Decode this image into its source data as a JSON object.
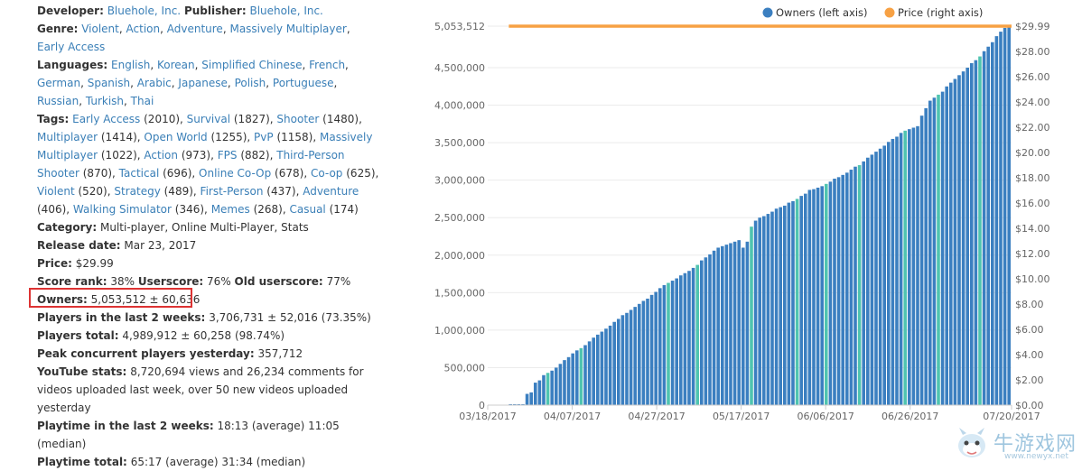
{
  "info": {
    "developer_label": "Developer:",
    "developer": "Bluehole, Inc.",
    "publisher_label": "Publisher:",
    "publisher": "Bluehole, Inc.",
    "genre_label": "Genre:",
    "genres": [
      "Violent",
      "Action",
      "Adventure",
      "Massively Multiplayer",
      "Early Access"
    ],
    "languages_label": "Languages:",
    "languages": [
      "English",
      "Korean",
      "Simplified Chinese",
      "French",
      "German",
      "Spanish",
      "Arabic",
      "Japanese",
      "Polish",
      "Portuguese",
      "Russian",
      "Turkish",
      "Thai"
    ],
    "tags_label": "Tags:",
    "tags": [
      {
        "name": "Early Access",
        "count": "(2010)"
      },
      {
        "name": "Survival",
        "count": "(1827)"
      },
      {
        "name": "Shooter",
        "count": "(1480)"
      },
      {
        "name": "Multiplayer",
        "count": "(1414)"
      },
      {
        "name": "Open World",
        "count": "(1255)"
      },
      {
        "name": "PvP",
        "count": "(1158)"
      },
      {
        "name": "Massively Multiplayer",
        "count": "(1022)"
      },
      {
        "name": "Action",
        "count": "(973)"
      },
      {
        "name": "FPS",
        "count": "(882)"
      },
      {
        "name": "Third-Person Shooter",
        "count": "(870)"
      },
      {
        "name": "Tactical",
        "count": "(696)"
      },
      {
        "name": "Online Co-Op",
        "count": "(678)"
      },
      {
        "name": "Co-op",
        "count": "(625)"
      },
      {
        "name": "Violent",
        "count": "(520)"
      },
      {
        "name": "Strategy",
        "count": "(489)"
      },
      {
        "name": "First-Person",
        "count": "(437)"
      },
      {
        "name": "Adventure",
        "count": "(406)"
      },
      {
        "name": "Walking Simulator",
        "count": "(346)"
      },
      {
        "name": "Memes",
        "count": "(268)"
      },
      {
        "name": "Casual",
        "count": "(174)"
      }
    ],
    "category_label": "Category:",
    "category": "Multi-player, Online Multi-Player, Stats",
    "release_label": "Release date:",
    "release": "Mar 23, 2017",
    "price_label": "Price:",
    "price": "$29.99",
    "score_rank_label": "Score rank:",
    "score_rank": "38%",
    "userscore_label": "Userscore:",
    "userscore": "76%",
    "old_userscore_label": "Old userscore:",
    "old_userscore": "77%",
    "owners_label": "Owners:",
    "owners": "5,053,512 ± 60,636",
    "players2w_label": "Players in the last 2 weeks:",
    "players2w": "3,706,731 ± 52,016 (73.35%)",
    "players_total_label": "Players total:",
    "players_total": "4,989,912 ± 60,258 (98.74%)",
    "peak_label": "Peak concurrent players yesterday:",
    "peak": "357,712",
    "youtube_label": "YouTube stats:",
    "youtube": "8,720,694 views and 26,234 comments for videos uploaded last week, over 50 new videos uploaded yesterday",
    "playtime2w_label": "Playtime in the last 2 weeks:",
    "playtime2w": "18:13 (average) 11:05 (median)",
    "playtime_total_label": "Playtime total:",
    "playtime_total": "65:17 (average) 31:34 (median)"
  },
  "chart_data": {
    "type": "bar",
    "series": [
      {
        "name": "Owners (left axis)",
        "type": "bar",
        "color": "#3b7fc0",
        "highlight_color": "#4fc4b0"
      },
      {
        "name": "Price (right axis)",
        "type": "line",
        "color": "#f7a144",
        "value": 29.99
      }
    ],
    "x_tick_labels": [
      "03/18/2017",
      "04/07/2017",
      "04/27/2017",
      "05/17/2017",
      "06/06/2017",
      "06/26/2017",
      "07/20/2017"
    ],
    "x_tick_days": [
      0,
      20,
      40,
      60,
      80,
      100,
      124
    ],
    "x_range_days": [
      0,
      124
    ],
    "bar_start_day": 5,
    "bar_days": 119,
    "y_left_ticks": [
      0,
      500000,
      1000000,
      1500000,
      2000000,
      2500000,
      3000000,
      3500000,
      4000000,
      4500000,
      5053512
    ],
    "y_left_tick_labels": [
      "0",
      "500,000",
      "1,000,000",
      "1,500,000",
      "2,000,000",
      "2,500,000",
      "3,000,000",
      "3,500,000",
      "4,000,000",
      "4,500,000",
      "5,053,512"
    ],
    "y_left_range": [
      0,
      5053512
    ],
    "y_right_ticks": [
      0,
      2,
      4,
      6,
      8,
      10,
      12,
      14,
      16,
      18,
      20,
      22,
      24,
      26,
      28,
      29.99
    ],
    "y_right_tick_labels": [
      "$0.00",
      "$2.00",
      "$4.00",
      "$6.00",
      "$8.00",
      "$10.00",
      "$12.00",
      "$14.00",
      "$16.00",
      "$18.00",
      "$20.00",
      "$22.00",
      "$24.00",
      "$26.00",
      "$28.00",
      "$29.99"
    ],
    "y_right_range": [
      0,
      29.99
    ],
    "owners_values": [
      0,
      0,
      0,
      0,
      150000,
      170000,
      300000,
      330000,
      400000,
      430000,
      460000,
      500000,
      550000,
      600000,
      640000,
      690000,
      730000,
      760000,
      800000,
      850000,
      900000,
      940000,
      980000,
      1020000,
      1060000,
      1110000,
      1150000,
      1200000,
      1230000,
      1270000,
      1310000,
      1350000,
      1390000,
      1420000,
      1470000,
      1510000,
      1560000,
      1600000,
      1630000,
      1660000,
      1690000,
      1730000,
      1760000,
      1790000,
      1830000,
      1870000,
      1930000,
      1970000,
      2010000,
      2060000,
      2100000,
      2120000,
      2140000,
      2160000,
      2180000,
      2200000,
      2100000,
      2180000,
      2380000,
      2460000,
      2500000,
      2520000,
      2550000,
      2580000,
      2620000,
      2640000,
      2660000,
      2700000,
      2720000,
      2750000,
      2790000,
      2820000,
      2870000,
      2880000,
      2900000,
      2920000,
      2950000,
      2980000,
      3020000,
      3040000,
      3070000,
      3100000,
      3140000,
      3180000,
      3200000,
      3250000,
      3300000,
      3340000,
      3380000,
      3420000,
      3460000,
      3510000,
      3550000,
      3580000,
      3630000,
      3660000,
      3680000,
      3700000,
      3720000,
      3860000,
      3960000,
      4060000,
      4100000,
      4140000,
      4180000,
      4250000,
      4300000,
      4350000,
      4400000,
      4450000,
      4500000,
      4560000,
      4600000,
      4650000,
      4720000,
      4780000,
      4840000,
      4920000,
      4980000,
      5030000,
      5053512
    ],
    "highlight_indices": [
      9,
      17,
      38,
      45,
      58,
      69,
      76,
      84,
      95,
      103,
      113
    ],
    "grid": true,
    "legend_position": "top-right"
  }
}
